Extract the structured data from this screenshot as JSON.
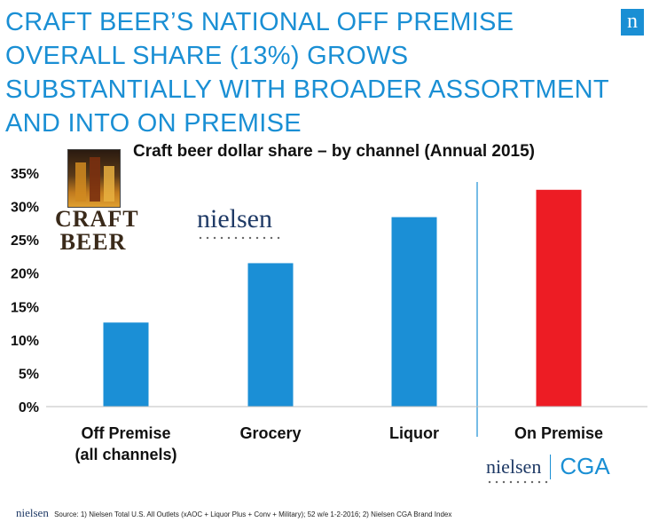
{
  "headline": "CRAFT BEER’S NATIONAL OFF PREMISE OVERALL SHARE (13%) GROWS SUBSTANTIALLY WITH BROADER ASSORTMENT AND INTO ON PREMISE",
  "corner_logo": "n",
  "logos": {
    "craft_top": "CRAFT",
    "craft_bottom": "BEER",
    "nielsen": "nielsen",
    "cga": "CGA"
  },
  "footer": {
    "brand": "nielsen",
    "source": "Source:  1) Nielsen Total U.S. All Outlets (xAOC + Liquor Plus + Conv + Military); 52 w/e  1-2-2016; 2) Nielsen CGA Brand Index"
  },
  "colors": {
    "accent": "#1a8fd4",
    "bar": "#1b8fd6",
    "highlight": "#ed1c24"
  },
  "chart_data": {
    "type": "bar",
    "title": "Craft beer dollar share – by channel (Annual 2015)",
    "categories": [
      "Off Premise\n(all channels)",
      "Grocery",
      "Liquor",
      "On Premise"
    ],
    "values": [
      12.6,
      21.5,
      28.4,
      32.5
    ],
    "bar_colors": [
      "#1b8fd6",
      "#1b8fd6",
      "#1b8fd6",
      "#ed1c24"
    ],
    "yticks": [
      "0%",
      "5%",
      "10%",
      "15%",
      "20%",
      "25%",
      "30%",
      "35%"
    ],
    "ylim": [
      0,
      35
    ],
    "unit": "%",
    "grid": false,
    "divider_between": [
      2,
      3
    ]
  }
}
